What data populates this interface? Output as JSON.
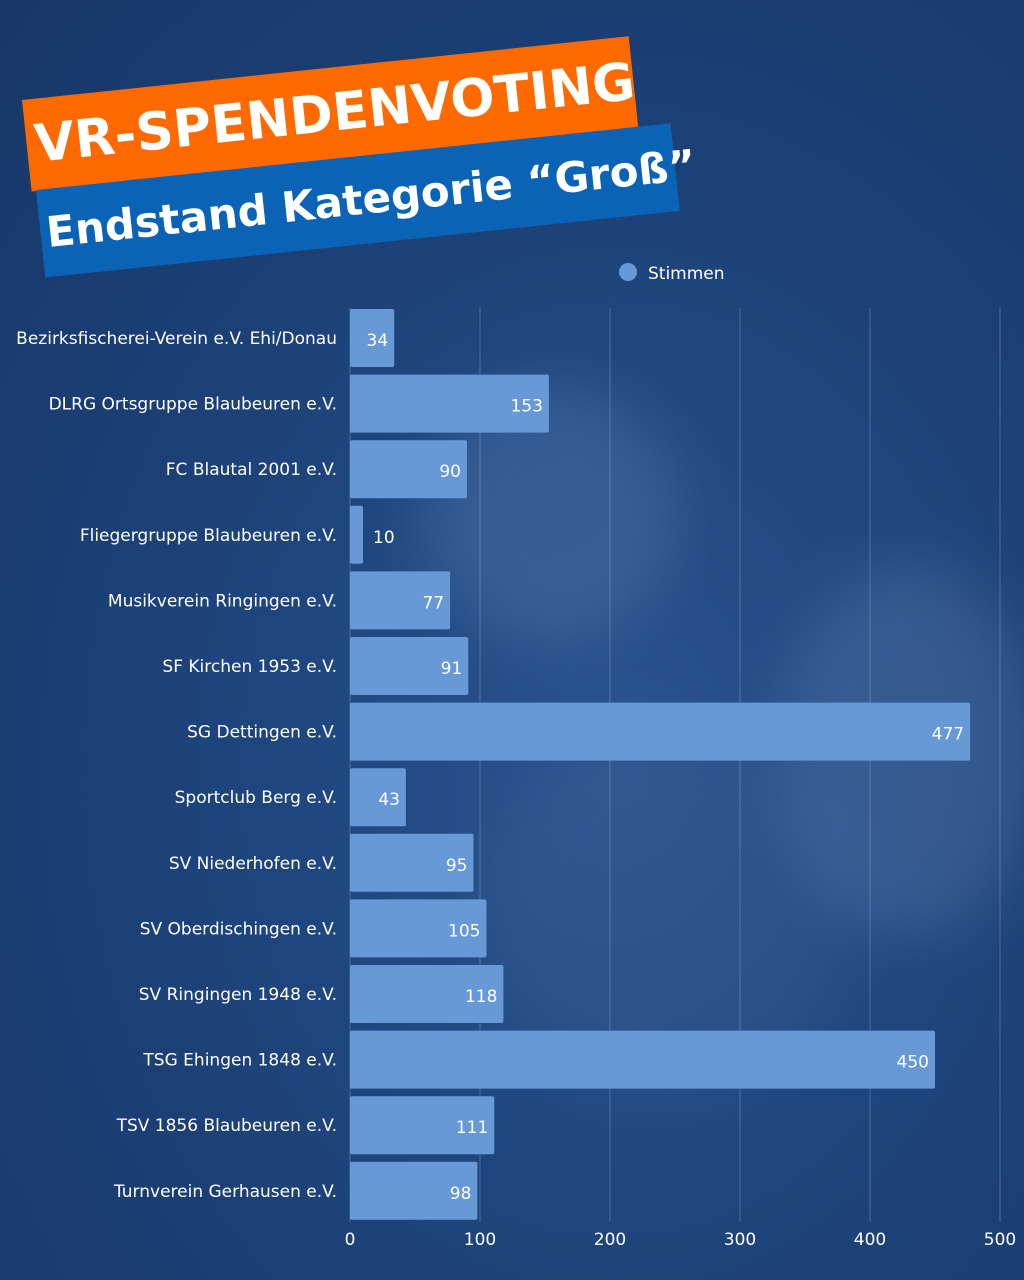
{
  "banner": {
    "title": "VR-SPENDENVOTING",
    "subtitle": "Endstand Kategorie “Groß”",
    "title_bg": "#ff6a00",
    "subtitle_bg": "#0b63b6"
  },
  "chart_data": {
    "type": "bar",
    "orientation": "horizontal",
    "categories": [
      "Bezirksfischerei-Verein e.V. Ehi/Donau",
      "DLRG Ortsgruppe Blaubeuren e.V.",
      "FC Blautal 2001 e.V.",
      "Fliegergruppe Blaubeuren e.V.",
      "Musikverein Ringingen e.V.",
      "SF Kirchen 1953 e.V.",
      "SG Dettingen e.V.",
      "Sportclub Berg e.V.",
      "SV Niederhofen e.V.",
      "SV Oberdischingen e.V.",
      "SV Ringingen 1948 e.V.",
      "TSG Ehingen 1848 e.V.",
      "TSV 1856 Blaubeuren e.V.",
      "Turnverein Gerhausen e.V."
    ],
    "series": [
      {
        "name": "Stimmen",
        "values": [
          34,
          153,
          90,
          10,
          77,
          91,
          477,
          43,
          95,
          105,
          118,
          450,
          111,
          98
        ],
        "color": "#6699d6"
      }
    ],
    "xlim": [
      0,
      500
    ],
    "xticks": [
      "0",
      "100",
      "200",
      "300",
      "400",
      "500"
    ],
    "grid": true,
    "legend": "top-center",
    "data_labels": true
  }
}
